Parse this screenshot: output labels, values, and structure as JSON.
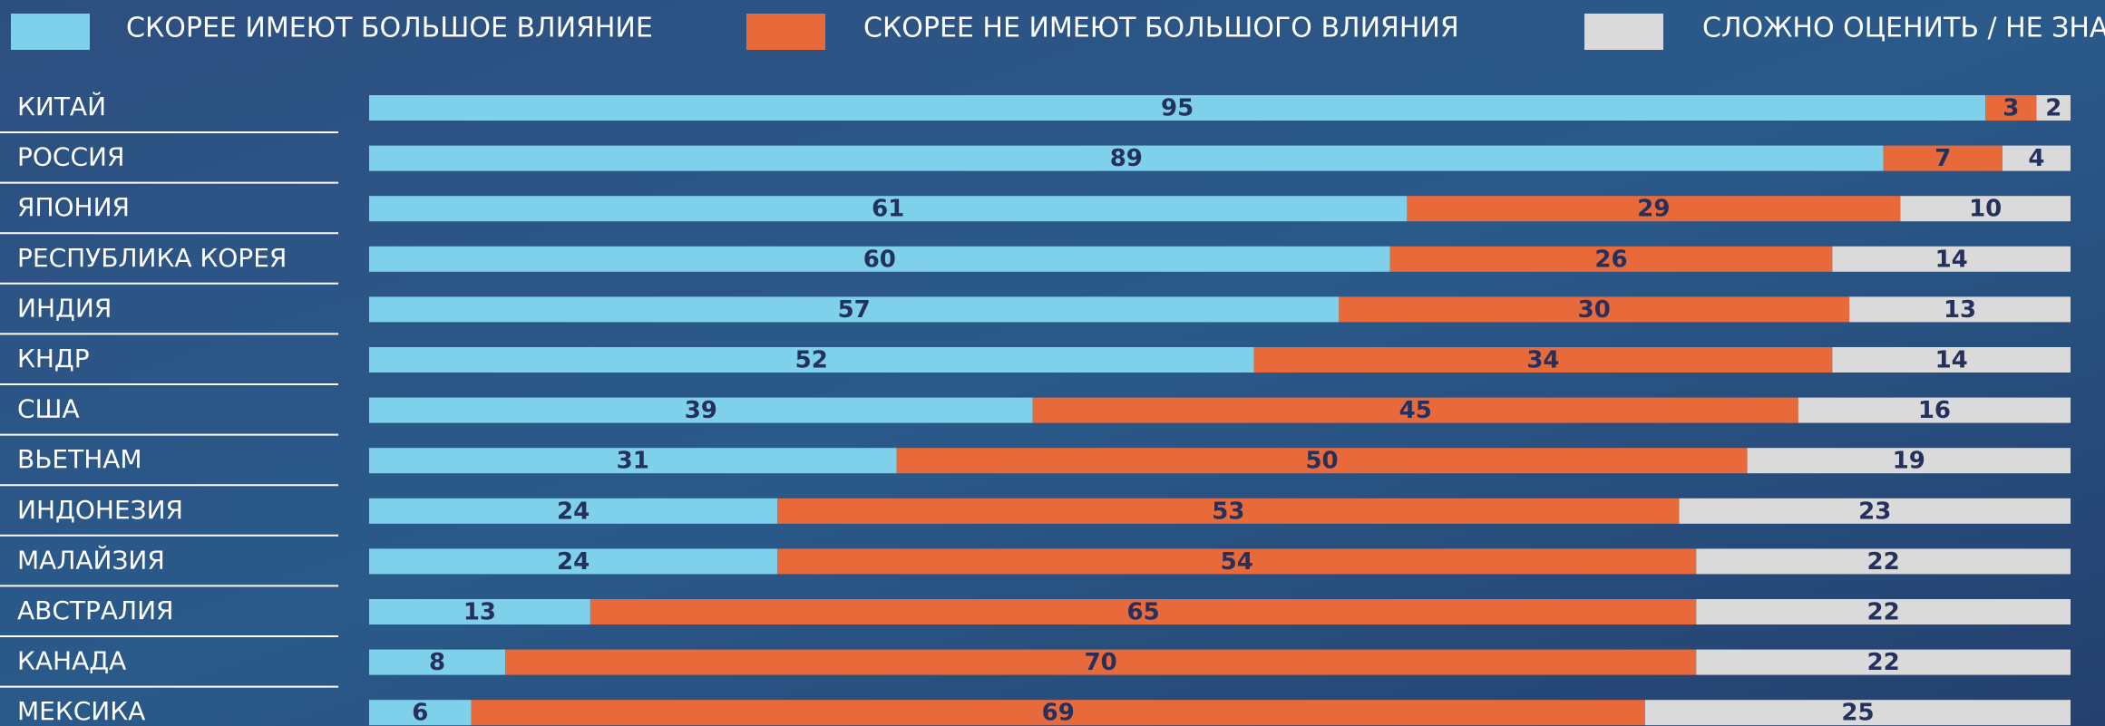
{
  "chart_data": {
    "type": "stacked-bar-horizontal",
    "categories": [
      "КИТАЙ",
      "РОССИЯ",
      "ЯПОНИЯ",
      "РЕСПУБЛИКА КОРЕЯ",
      "ИНДИЯ",
      "КНДР",
      "США",
      "ВЬЕТНАМ",
      "ИНДОНЕЗИЯ",
      "МАЛАЙЗИЯ",
      "АВСТРАЛИЯ",
      "КАНАДА",
      "МЕКСИКА"
    ],
    "series": [
      {
        "name": "СКОРЕЕ ИМЕЮТ БОЛЬШОЕ ВЛИЯНИЕ",
        "color": "#7fd0ea",
        "values": [
          95,
          89,
          61,
          60,
          57,
          52,
          39,
          31,
          24,
          24,
          13,
          8,
          6
        ]
      },
      {
        "name": "СКОРЕЕ НЕ ИМЕЮТ БОЛЬШОГО ВЛИЯНИЯ",
        "color": "#e8693a",
        "values": [
          3,
          7,
          29,
          26,
          30,
          34,
          45,
          50,
          53,
          54,
          65,
          70,
          69
        ]
      },
      {
        "name": "СЛОЖНО ОЦЕНИТЬ / НЕ ЗНАЮ",
        "color": "#dadada",
        "values": [
          2,
          4,
          10,
          14,
          13,
          14,
          16,
          19,
          23,
          22,
          22,
          22,
          25
        ]
      }
    ],
    "xlim": [
      0,
      100
    ],
    "legend": "top"
  }
}
